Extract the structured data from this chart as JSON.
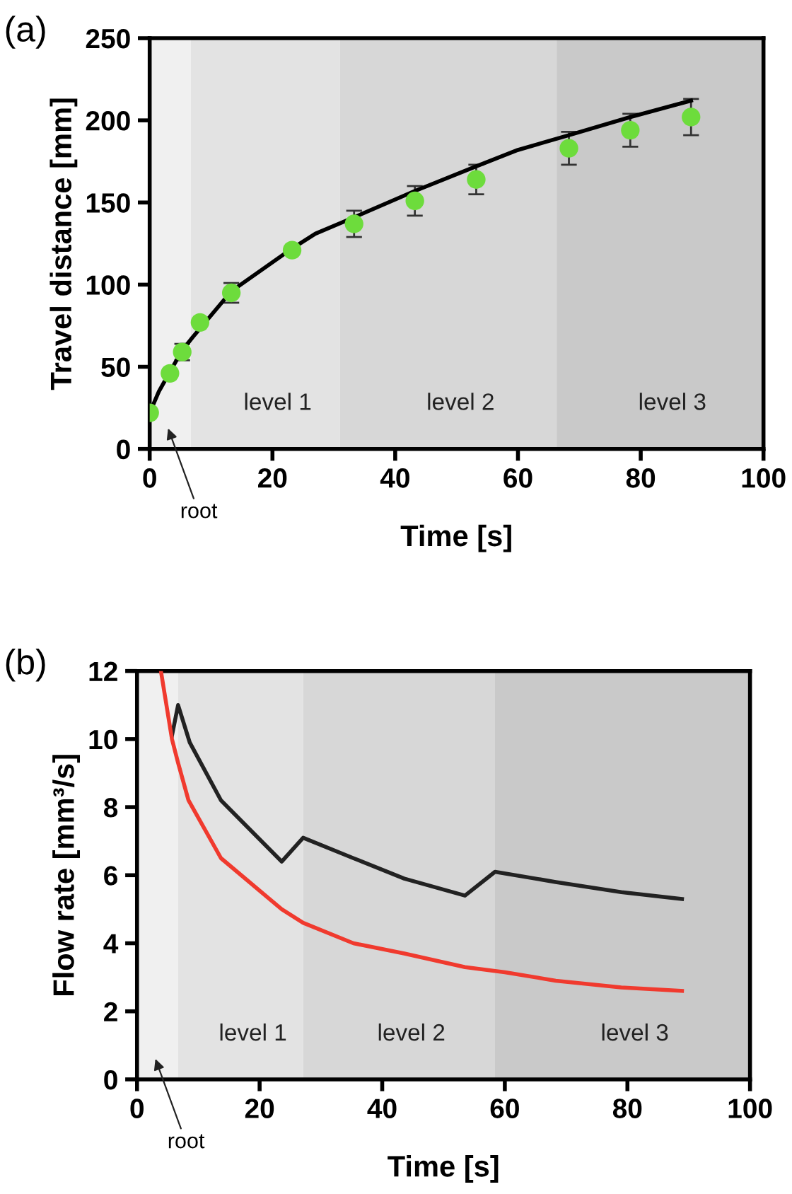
{
  "chart_data": [
    {
      "type": "scatter",
      "title": "(a)",
      "xlabel": "Time [s]",
      "ylabel": "Travel distance [mm]",
      "xlim": [
        0,
        100
      ],
      "ylim": [
        0,
        250
      ],
      "xticks": [
        0,
        20,
        40,
        60,
        80,
        100
      ],
      "yticks": [
        0,
        50,
        100,
        150,
        200,
        250
      ],
      "grid": false,
      "legend": false,
      "marker": "circle",
      "bands": [
        {
          "axis": "x",
          "from": 0,
          "to": 6.7,
          "label": "root",
          "color": "#f0f0f0"
        },
        {
          "axis": "x",
          "from": 6.7,
          "to": 31,
          "label": "level 1",
          "color": "#e3e3e3"
        },
        {
          "axis": "x",
          "from": 31,
          "to": 66.3,
          "label": "level 2",
          "color": "#d7d7d7"
        },
        {
          "axis": "x",
          "from": 66.3,
          "to": 100,
          "label": "level 3",
          "color": "#c9c9c9"
        }
      ],
      "series": [
        {
          "type": "line",
          "color": "#000000",
          "marker": "none",
          "x": [
            0,
            1.5,
            3.3,
            5.3,
            7,
            13.3,
            23.2,
            27,
            33.3,
            43.2,
            53.2,
            60,
            68.3,
            78.3,
            88.2
          ],
          "values": [
            22,
            35,
            47,
            60,
            68,
            96,
            122,
            131,
            141,
            157,
            172,
            182,
            191,
            202,
            212
          ]
        },
        {
          "type": "scatter",
          "color": "#6ddc3c",
          "x": [
            0,
            3.3,
            5.3,
            8.2,
            13.3,
            23.2,
            33.3,
            43.2,
            53.2,
            68.3,
            78.3,
            88.2
          ],
          "values": [
            22,
            46,
            59,
            77,
            95,
            121,
            137,
            151,
            164,
            183,
            194,
            202
          ],
          "errors": [
            null,
            null,
            5,
            null,
            6,
            null,
            8,
            9,
            9,
            10,
            10,
            11
          ]
        }
      ]
    },
    {
      "type": "line",
      "title": "(b)",
      "xlabel": "Time [s]",
      "ylabel": "Flow rate [mm³/s]",
      "xlim": [
        0,
        100
      ],
      "ylim": [
        0,
        12
      ],
      "xticks": [
        0,
        20,
        40,
        60,
        80,
        100
      ],
      "yticks": [
        0,
        2,
        4,
        6,
        8,
        10,
        12
      ],
      "grid": false,
      "legend": false,
      "marker": "none",
      "line_style": "solid",
      "bands": [
        {
          "axis": "x",
          "from": 0,
          "to": 6.7,
          "label": "root",
          "color": "#f0f0f0"
        },
        {
          "axis": "x",
          "from": 6.7,
          "to": 27.1,
          "label": "level 1",
          "color": "#e3e3e3"
        },
        {
          "axis": "x",
          "from": 27.1,
          "to": 58.4,
          "label": "level 2",
          "color": "#d7d7d7"
        },
        {
          "axis": "x",
          "from": 58.4,
          "to": 100,
          "label": "level 3",
          "color": "#c9c9c9"
        }
      ],
      "series": [
        {
          "color": "#222222",
          "x": [
            5.7,
            6.7,
            8.6,
            13.7,
            23.6,
            27.1,
            35.3,
            43.6,
            53.5,
            58.4,
            68.3,
            79.0,
            88.9
          ],
          "values": [
            10.1,
            11.0,
            9.9,
            8.2,
            6.4,
            7.1,
            6.5,
            5.9,
            5.4,
            6.1,
            5.8,
            5.5,
            5.3
          ]
        },
        {
          "color": "#f03a2e",
          "x": [
            3.9,
            5.7,
            6.7,
            8.4,
            13.7,
            23.6,
            27.1,
            35.3,
            43.6,
            53.5,
            60.0,
            68.3,
            79.0,
            88.9
          ],
          "values": [
            12,
            10.0,
            9.3,
            8.2,
            6.5,
            5.0,
            4.6,
            4.0,
            3.7,
            3.3,
            3.15,
            2.9,
            2.7,
            2.6
          ]
        }
      ]
    }
  ]
}
